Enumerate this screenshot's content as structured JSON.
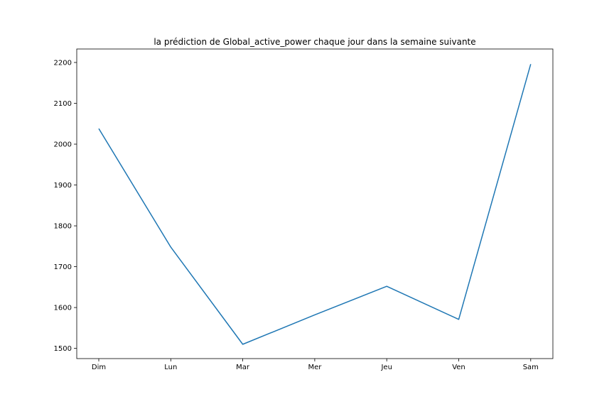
{
  "chart_data": {
    "type": "line",
    "title": "la prédiction de Global_active_power chaque jour dans la semaine suivante",
    "xlabel": "",
    "ylabel": "",
    "categories": [
      "Dim",
      "Lun",
      "Mar",
      "Mer",
      "Jeu",
      "Ven",
      "Sam"
    ],
    "series": [
      {
        "values": [
          2038,
          1748,
          1510,
          1582,
          1652,
          1571,
          2196
        ],
        "color": "#1f77b4"
      }
    ],
    "ylim": [
      1475,
      2233
    ],
    "yticks": [
      1500,
      1600,
      1700,
      1800,
      1900,
      2000,
      2100,
      2200
    ],
    "grid": false,
    "legend": "none"
  }
}
